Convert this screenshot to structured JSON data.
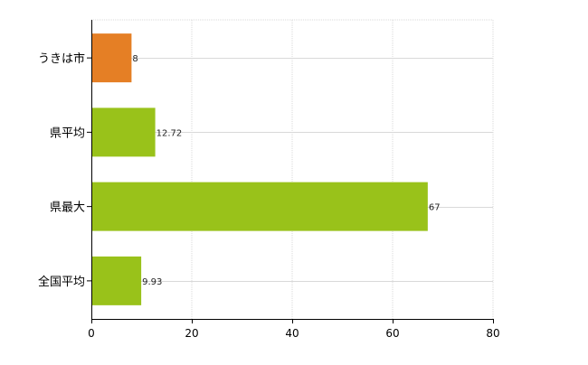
{
  "chart_data": {
    "type": "bar",
    "orientation": "horizontal",
    "categories": [
      "うきは市",
      "県平均",
      "県最大",
      "全国平均"
    ],
    "values": [
      8,
      12.72,
      67,
      9.93
    ],
    "value_labels": [
      "8",
      "12.72",
      "67",
      "9.93"
    ],
    "bar_colors": [
      "#e57f25",
      "#99c21a",
      "#99c21a",
      "#99c21a"
    ],
    "xlim": [
      0,
      80
    ],
    "x_ticks": [
      0,
      20,
      40,
      60,
      80
    ],
    "x_tick_labels": [
      "0",
      "20",
      "40",
      "60",
      "80"
    ],
    "grid": true,
    "legend": "none",
    "title": "",
    "xlabel": "",
    "ylabel": ""
  }
}
